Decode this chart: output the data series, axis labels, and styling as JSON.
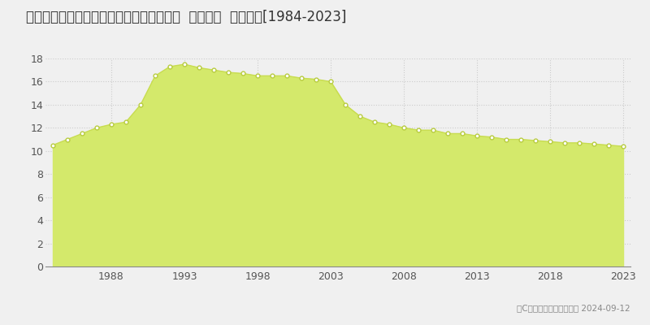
{
  "title": "静岡県磤田市大久保字安井谷６０７番１外  地価公示  地価推移[1984-2023]",
  "years": [
    1984,
    1985,
    1986,
    1987,
    1988,
    1989,
    1990,
    1991,
    1992,
    1993,
    1994,
    1995,
    1996,
    1997,
    1998,
    1999,
    2000,
    2001,
    2002,
    2003,
    2004,
    2005,
    2006,
    2007,
    2008,
    2009,
    2010,
    2011,
    2012,
    2013,
    2014,
    2015,
    2016,
    2017,
    2018,
    2019,
    2020,
    2021,
    2022,
    2023
  ],
  "values": [
    10.5,
    11.0,
    11.5,
    12.0,
    12.3,
    12.5,
    14.0,
    16.5,
    17.3,
    17.5,
    17.2,
    17.0,
    16.8,
    16.7,
    16.5,
    16.5,
    16.5,
    16.3,
    16.2,
    16.0,
    14.0,
    13.0,
    12.5,
    12.3,
    12.0,
    11.8,
    11.8,
    11.5,
    11.5,
    11.3,
    11.2,
    11.0,
    11.0,
    10.9,
    10.8,
    10.7,
    10.7,
    10.6,
    10.5,
    10.4
  ],
  "fill_color": "#d4e96b",
  "line_color": "#c8dc50",
  "marker_color": "#ffffff",
  "marker_edge_color": "#b8cc40",
  "bg_color": "#f0f0f0",
  "plot_bg_color": "#f0f0f0",
  "grid_color": "#cccccc",
  "ylim": [
    0,
    18
  ],
  "yticks": [
    0,
    2,
    4,
    6,
    8,
    10,
    12,
    14,
    16,
    18
  ],
  "xtick_years": [
    1988,
    1993,
    1998,
    2003,
    2008,
    2013,
    2018,
    2023
  ],
  "legend_color": "#c8dc50",
  "copyright_text": "（C）土地価格ドットコム 2024-09-12",
  "title_fontsize": 12,
  "tick_fontsize": 9,
  "legend_fontsize": 9
}
